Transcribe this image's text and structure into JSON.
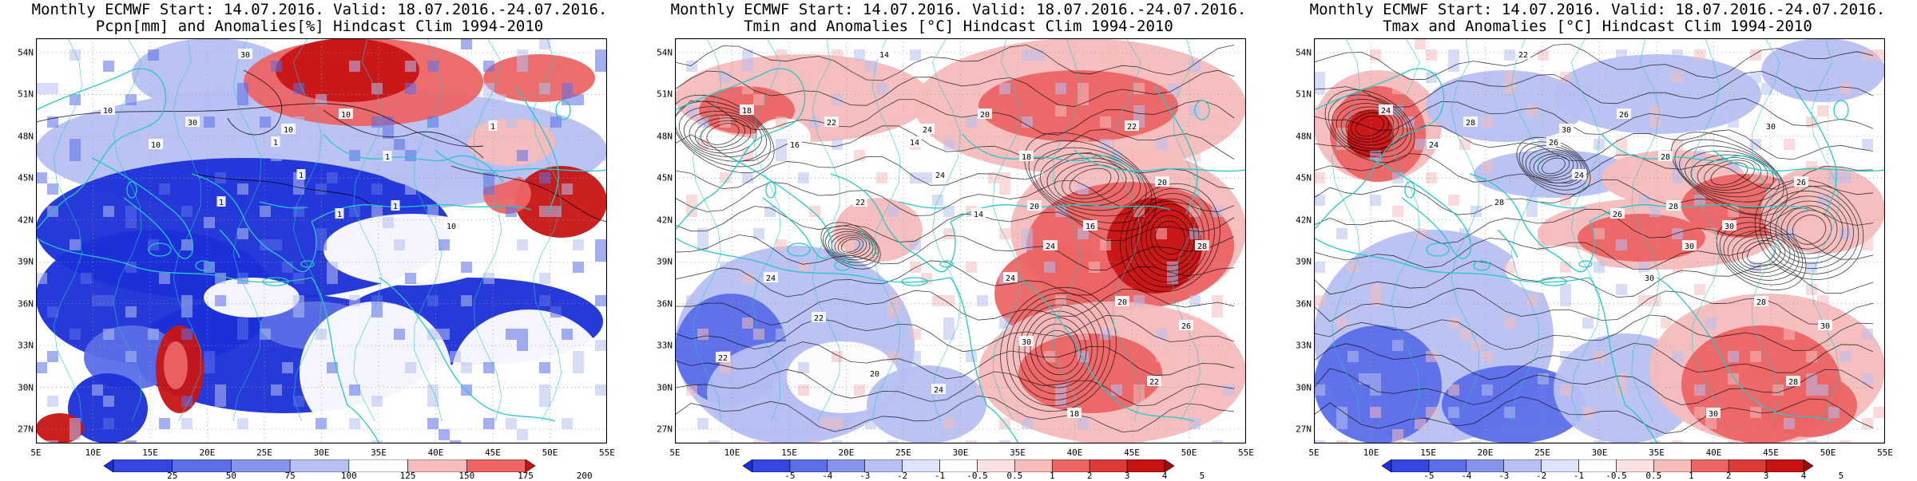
{
  "palette": {
    "strong_blue": "#1a2fd8",
    "blue": "#5a6ee8",
    "light_blue": "#b7c0f2",
    "white": "#ffffff",
    "light_red": "#f6bcbc",
    "red": "#ec6464",
    "dark_red": "#c81414",
    "coast": "#25c8c8",
    "contour": "#000000"
  },
  "lat_labels": [
    "54N",
    "51N",
    "48N",
    "45N",
    "42N",
    "39N",
    "36N",
    "33N",
    "30N",
    "27N"
  ],
  "lon_labels": [
    "5E",
    "10E",
    "15E",
    "20E",
    "25E",
    "30E",
    "35E",
    "40E",
    "45E",
    "50E",
    "55E"
  ],
  "panels": [
    {
      "id": "precip",
      "title_line1": "Monthly ECMWF Start: 14.07.2016. Valid: 18.07.2016.-24.07.2016.",
      "title_line2": "Pcpn[mm] and Anomalies[%] Hindcast Clim 1994-2010",
      "colorbar_labels": [
        "25",
        "50",
        "75",
        "100",
        "125",
        "150",
        "175",
        "200"
      ],
      "contour_labels": [
        "30",
        "10",
        "10",
        "30",
        "10",
        "10",
        "1",
        "1",
        "1",
        "1",
        "1",
        "10",
        "1",
        "1"
      ]
    },
    {
      "id": "tmin",
      "title_line1": "Monthly ECMWF Start: 14.07.2016. Valid: 18.07.2016.-24.07.2016.",
      "title_line2": "Tmin and Anomalies [°C] Hindcast Clim 1994-2010",
      "colorbar_labels": [
        "-5",
        "-4",
        "-3",
        "-2",
        "-1",
        "-0.5",
        "0.5",
        "1",
        "2",
        "3",
        "4",
        "5"
      ],
      "contour_labels": [
        "14",
        "18",
        "20",
        "22",
        "16",
        "24",
        "14",
        "18",
        "22",
        "24",
        "20",
        "16",
        "14",
        "22",
        "24",
        "20",
        "24",
        "20",
        "26",
        "22",
        "18",
        "30",
        "28",
        "24",
        "22",
        "20",
        "24",
        "22"
      ]
    },
    {
      "id": "tmax",
      "title_line1": "Monthly ECMWF Start: 14.07.2016. Valid: 18.07.2016.-24.07.2016.",
      "title_line2": "Tmax and Anomalies [°C] Hindcast Clim 1994-2010",
      "colorbar_labels": [
        "-5",
        "-4",
        "-3",
        "-2",
        "-1",
        "-0.5",
        "0.5",
        "1",
        "2",
        "3",
        "4",
        "5"
      ],
      "contour_labels": [
        "22",
        "24",
        "26",
        "28",
        "24",
        "30",
        "26",
        "28",
        "30",
        "24",
        "28",
        "30",
        "26",
        "28",
        "30",
        "26",
        "30",
        "28",
        "30",
        "28",
        "30"
      ]
    }
  ]
}
